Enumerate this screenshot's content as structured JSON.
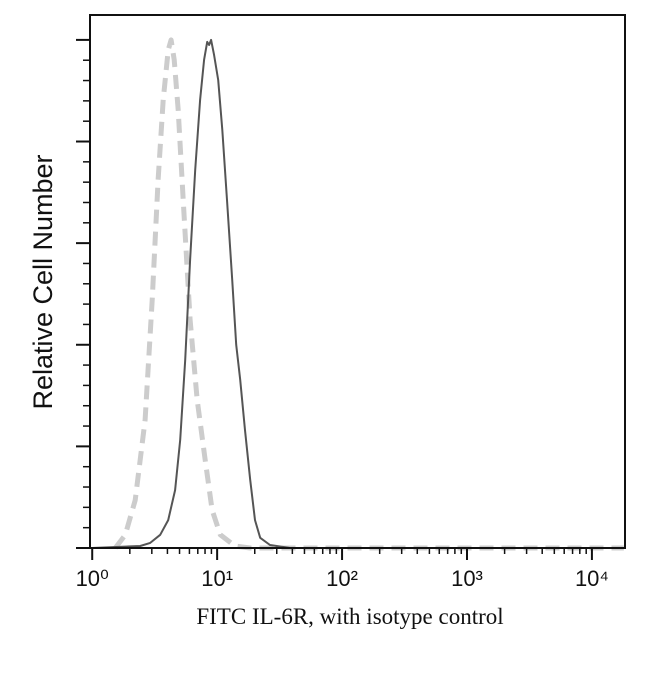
{
  "chart_data": {
    "type": "line",
    "x_label": "FITC IL-6R, with isotype control",
    "y_label": "Relative Cell Number",
    "xscale": "log",
    "xlim": [
      0.96,
      18400
    ],
    "ylim": [
      0,
      104.9
    ],
    "xticks": [
      {
        "value": 1,
        "label": "10⁰"
      },
      {
        "value": 10,
        "label": "10¹"
      },
      {
        "value": 100,
        "label": "10²"
      },
      {
        "value": 1000,
        "label": "10³"
      },
      {
        "value": 10000,
        "label": "10⁴"
      }
    ],
    "yticks": [
      0,
      20,
      40,
      60,
      80,
      100
    ],
    "series": [
      {
        "color": "#cccccc",
        "dashed": true,
        "x": [
          1.53,
          1.84,
          2.21,
          2.65,
          3.02,
          3.37,
          3.7,
          4.06,
          4.28,
          4.53,
          4.88,
          5.35,
          6.08,
          6.92,
          8.02,
          9.12,
          10.6,
          13.9,
          18.4,
          18000
        ],
        "values": [
          0,
          2.6,
          9.4,
          25.2,
          48.8,
          72.4,
          88.2,
          98,
          100,
          96.1,
          86.2,
          68.5,
          44.9,
          29.1,
          17.3,
          7.5,
          2.6,
          0.4,
          0,
          0
        ]
      },
      {
        "color": "#555555",
        "dashed": false,
        "x": [
          1.0,
          2.42,
          2.91,
          3.5,
          4.06,
          4.61,
          5.06,
          5.55,
          6.08,
          6.67,
          7.31,
          7.87,
          8.32,
          8.63,
          8.95,
          9.46,
          10.2,
          11.0,
          12.0,
          13.2,
          14.2,
          15.3,
          16.7,
          18.4,
          20.1,
          22.1,
          26.5,
          38.4,
          18000
        ],
        "values": [
          0,
          0.4,
          1,
          2.6,
          5.5,
          11.4,
          21.3,
          37,
          56.7,
          74.4,
          88.2,
          96.1,
          99.6,
          99,
          100,
          97,
          92.1,
          82.3,
          68.5,
          52.8,
          40,
          33.1,
          23.2,
          13.4,
          5.5,
          2,
          0.6,
          0,
          0
        ]
      }
    ]
  }
}
